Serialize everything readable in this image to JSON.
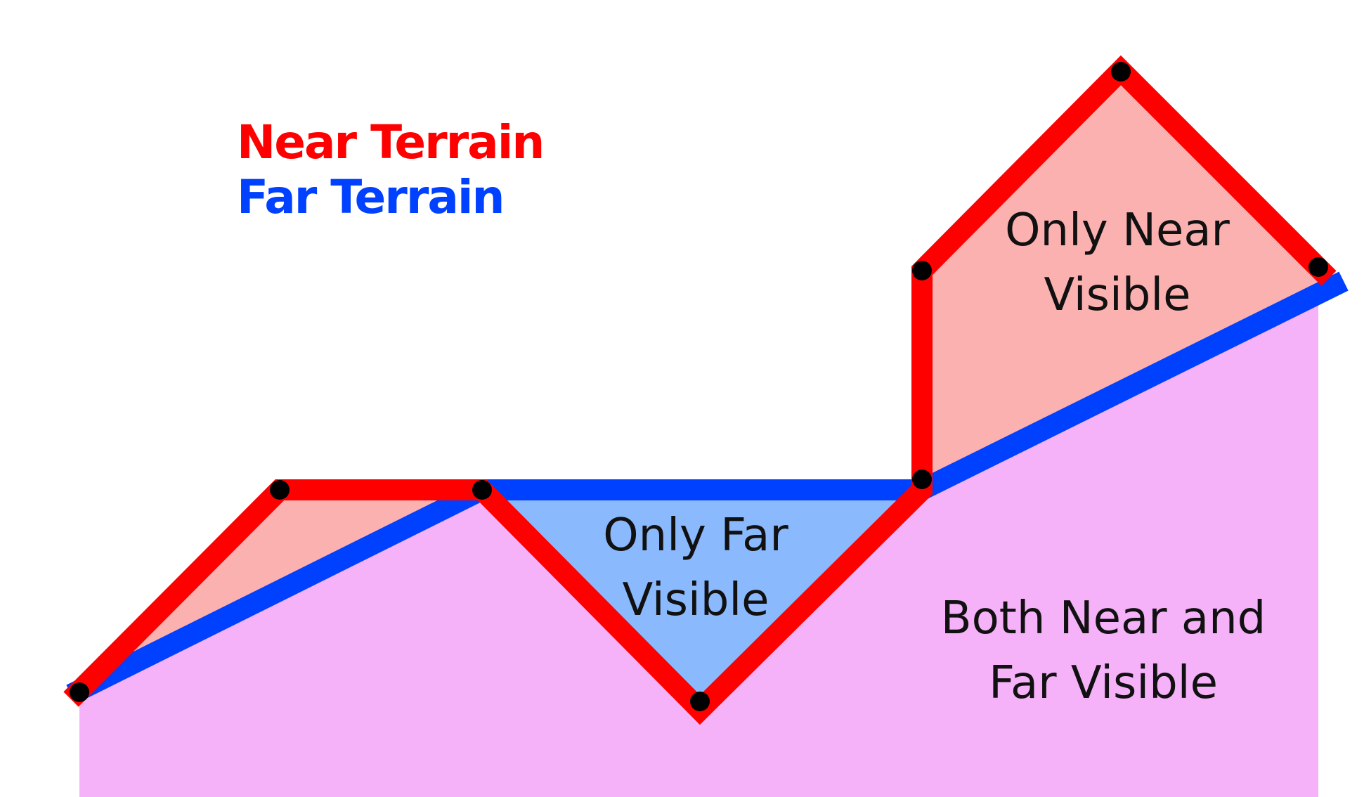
{
  "legend": {
    "near_label": "Near Terrain",
    "far_label": "Far Terrain",
    "near_color": "#ff0000",
    "far_color": "#0040ff"
  },
  "regions": {
    "only_near": {
      "line1": "Only Near",
      "line2": "Visible",
      "fill": "#fcb1b1"
    },
    "only_far": {
      "line1": "Only Far",
      "line2": "Visible",
      "fill": "#8ab9fd"
    },
    "both": {
      "line1": "Both Near and",
      "line2": "Far Visible",
      "fill": "#f6b2f9"
    }
  },
  "vertex_color": "#000000"
}
